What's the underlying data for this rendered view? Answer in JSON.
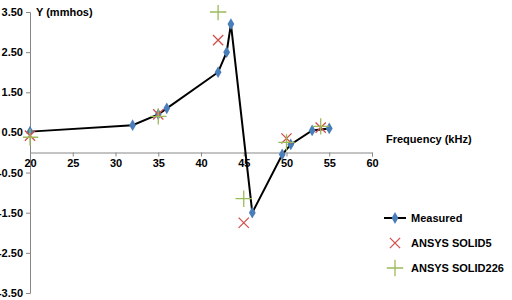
{
  "chart_data": {
    "type": "line",
    "x_label": "Frequency (kHz)",
    "y_label": "Y (mmhos)",
    "xlim": [
      20,
      60
    ],
    "xticks": [
      20,
      25,
      30,
      35,
      40,
      45,
      50,
      55,
      60
    ],
    "ylim": [
      -3.5,
      3.5
    ],
    "yticks": [
      {
        "value": -3.5,
        "label": "-3.50"
      },
      {
        "value": -2.5,
        "label": "-2.50"
      },
      {
        "value": -1.5,
        "label": "-1.50"
      },
      {
        "value": -0.5,
        "label": "-0.50"
      },
      {
        "value": 0.5,
        "label": "0.50"
      },
      {
        "value": 1.5,
        "label": "1.50"
      },
      {
        "value": 2.5,
        "label": "2.50"
      },
      {
        "value": 3.5,
        "label": "3.50"
      }
    ],
    "grid": false,
    "legend": "right",
    "series": [
      {
        "name": "Measured",
        "type": "line",
        "color": "#000000",
        "marker": "diamond",
        "line_style": "solid",
        "x": [
          20,
          32,
          35,
          36,
          42,
          43,
          43.5,
          46,
          49.5,
          50.5,
          53,
          55
        ],
        "values": [
          0.52,
          0.68,
          0.95,
          1.1,
          2.0,
          2.5,
          3.2,
          -1.5,
          -0.05,
          0.2,
          0.55,
          0.6
        ]
      },
      {
        "name": "ANSYS SOLID5",
        "type": "scatter",
        "color": "#d0504d",
        "marker": "x",
        "x": [
          20,
          35,
          42,
          45,
          50,
          54
        ],
        "values": [
          0.42,
          0.95,
          2.8,
          -1.75,
          0.35,
          0.62
        ]
      },
      {
        "name": "ANSYS SOLID226",
        "type": "scatter",
        "color": "#9bbb59",
        "marker": "plus",
        "x": [
          20,
          35,
          42,
          45,
          50,
          54
        ],
        "values": [
          0.38,
          0.9,
          3.5,
          -1.15,
          0.25,
          0.65
        ]
      }
    ]
  }
}
